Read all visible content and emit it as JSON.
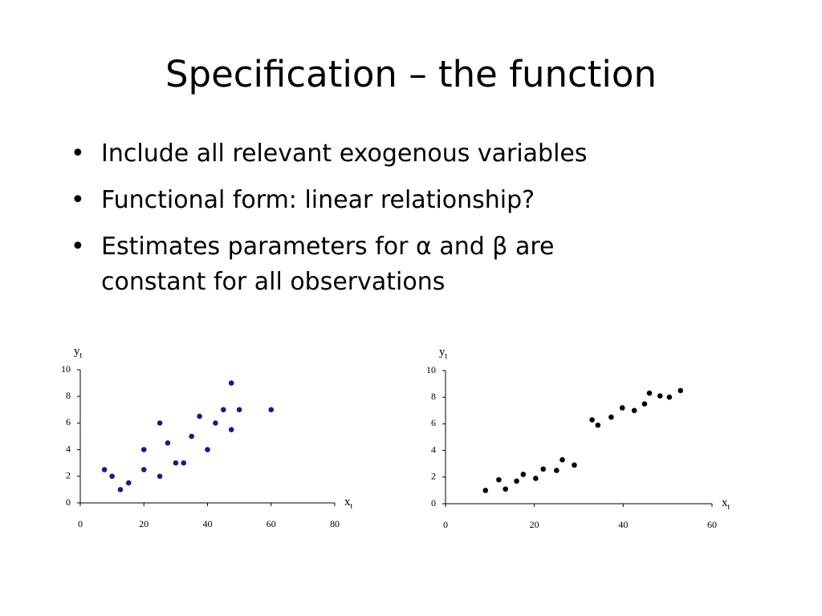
{
  "title": "Specification – the function",
  "bullets": [
    [
      "Include all relevant exogenous variables"
    ],
    [
      "Functional form: linear relationship?"
    ],
    [
      "Estimates parameters for α and β are",
      "constant for all observations"
    ]
  ],
  "chart_data": [
    {
      "type": "scatter",
      "color": "#1a1a80",
      "xlabel": [
        "x",
        "t"
      ],
      "ylabel": [
        "y",
        "t"
      ],
      "x": [
        7.6,
        10,
        12.6,
        15.2,
        20,
        20,
        25,
        25,
        27.5,
        30,
        32.5,
        35,
        37.5,
        40,
        42.5,
        45,
        47.5,
        47.5,
        50,
        60
      ],
      "values": [
        2.5,
        2,
        1,
        1.5,
        4,
        2.5,
        6,
        2,
        4.5,
        3,
        3,
        5,
        6.5,
        4,
        6,
        7,
        9,
        5.5,
        7,
        7
      ],
      "xlim": [
        0,
        80
      ],
      "xticks": [
        0,
        20,
        40,
        60,
        80
      ],
      "ylim": [
        0,
        10
      ],
      "yticks": [
        0,
        2,
        4,
        6,
        8,
        10
      ]
    },
    {
      "type": "scatter",
      "color": "#000000",
      "xlabel": [
        "x",
        "t"
      ],
      "ylabel": [
        "y",
        "t"
      ],
      "x": [
        9,
        12,
        13.5,
        16,
        17.5,
        20.3,
        22,
        25,
        26.3,
        29,
        33,
        34.3,
        37.3,
        39.8,
        42.5,
        44.8,
        45.9,
        48.3,
        50.4,
        52.9
      ],
      "values": [
        1,
        1.8,
        1.1,
        1.7,
        2.2,
        1.9,
        2.6,
        2.5,
        3.3,
        2.9,
        6.3,
        5.9,
        6.5,
        7.2,
        7,
        7.5,
        8.3,
        8.1,
        8,
        8.5
      ],
      "xlim": [
        0,
        60
      ],
      "xticks": [
        0,
        20,
        40,
        60
      ],
      "ylim": [
        0,
        10
      ],
      "yticks": [
        0,
        2,
        4,
        6,
        8,
        10
      ]
    }
  ]
}
